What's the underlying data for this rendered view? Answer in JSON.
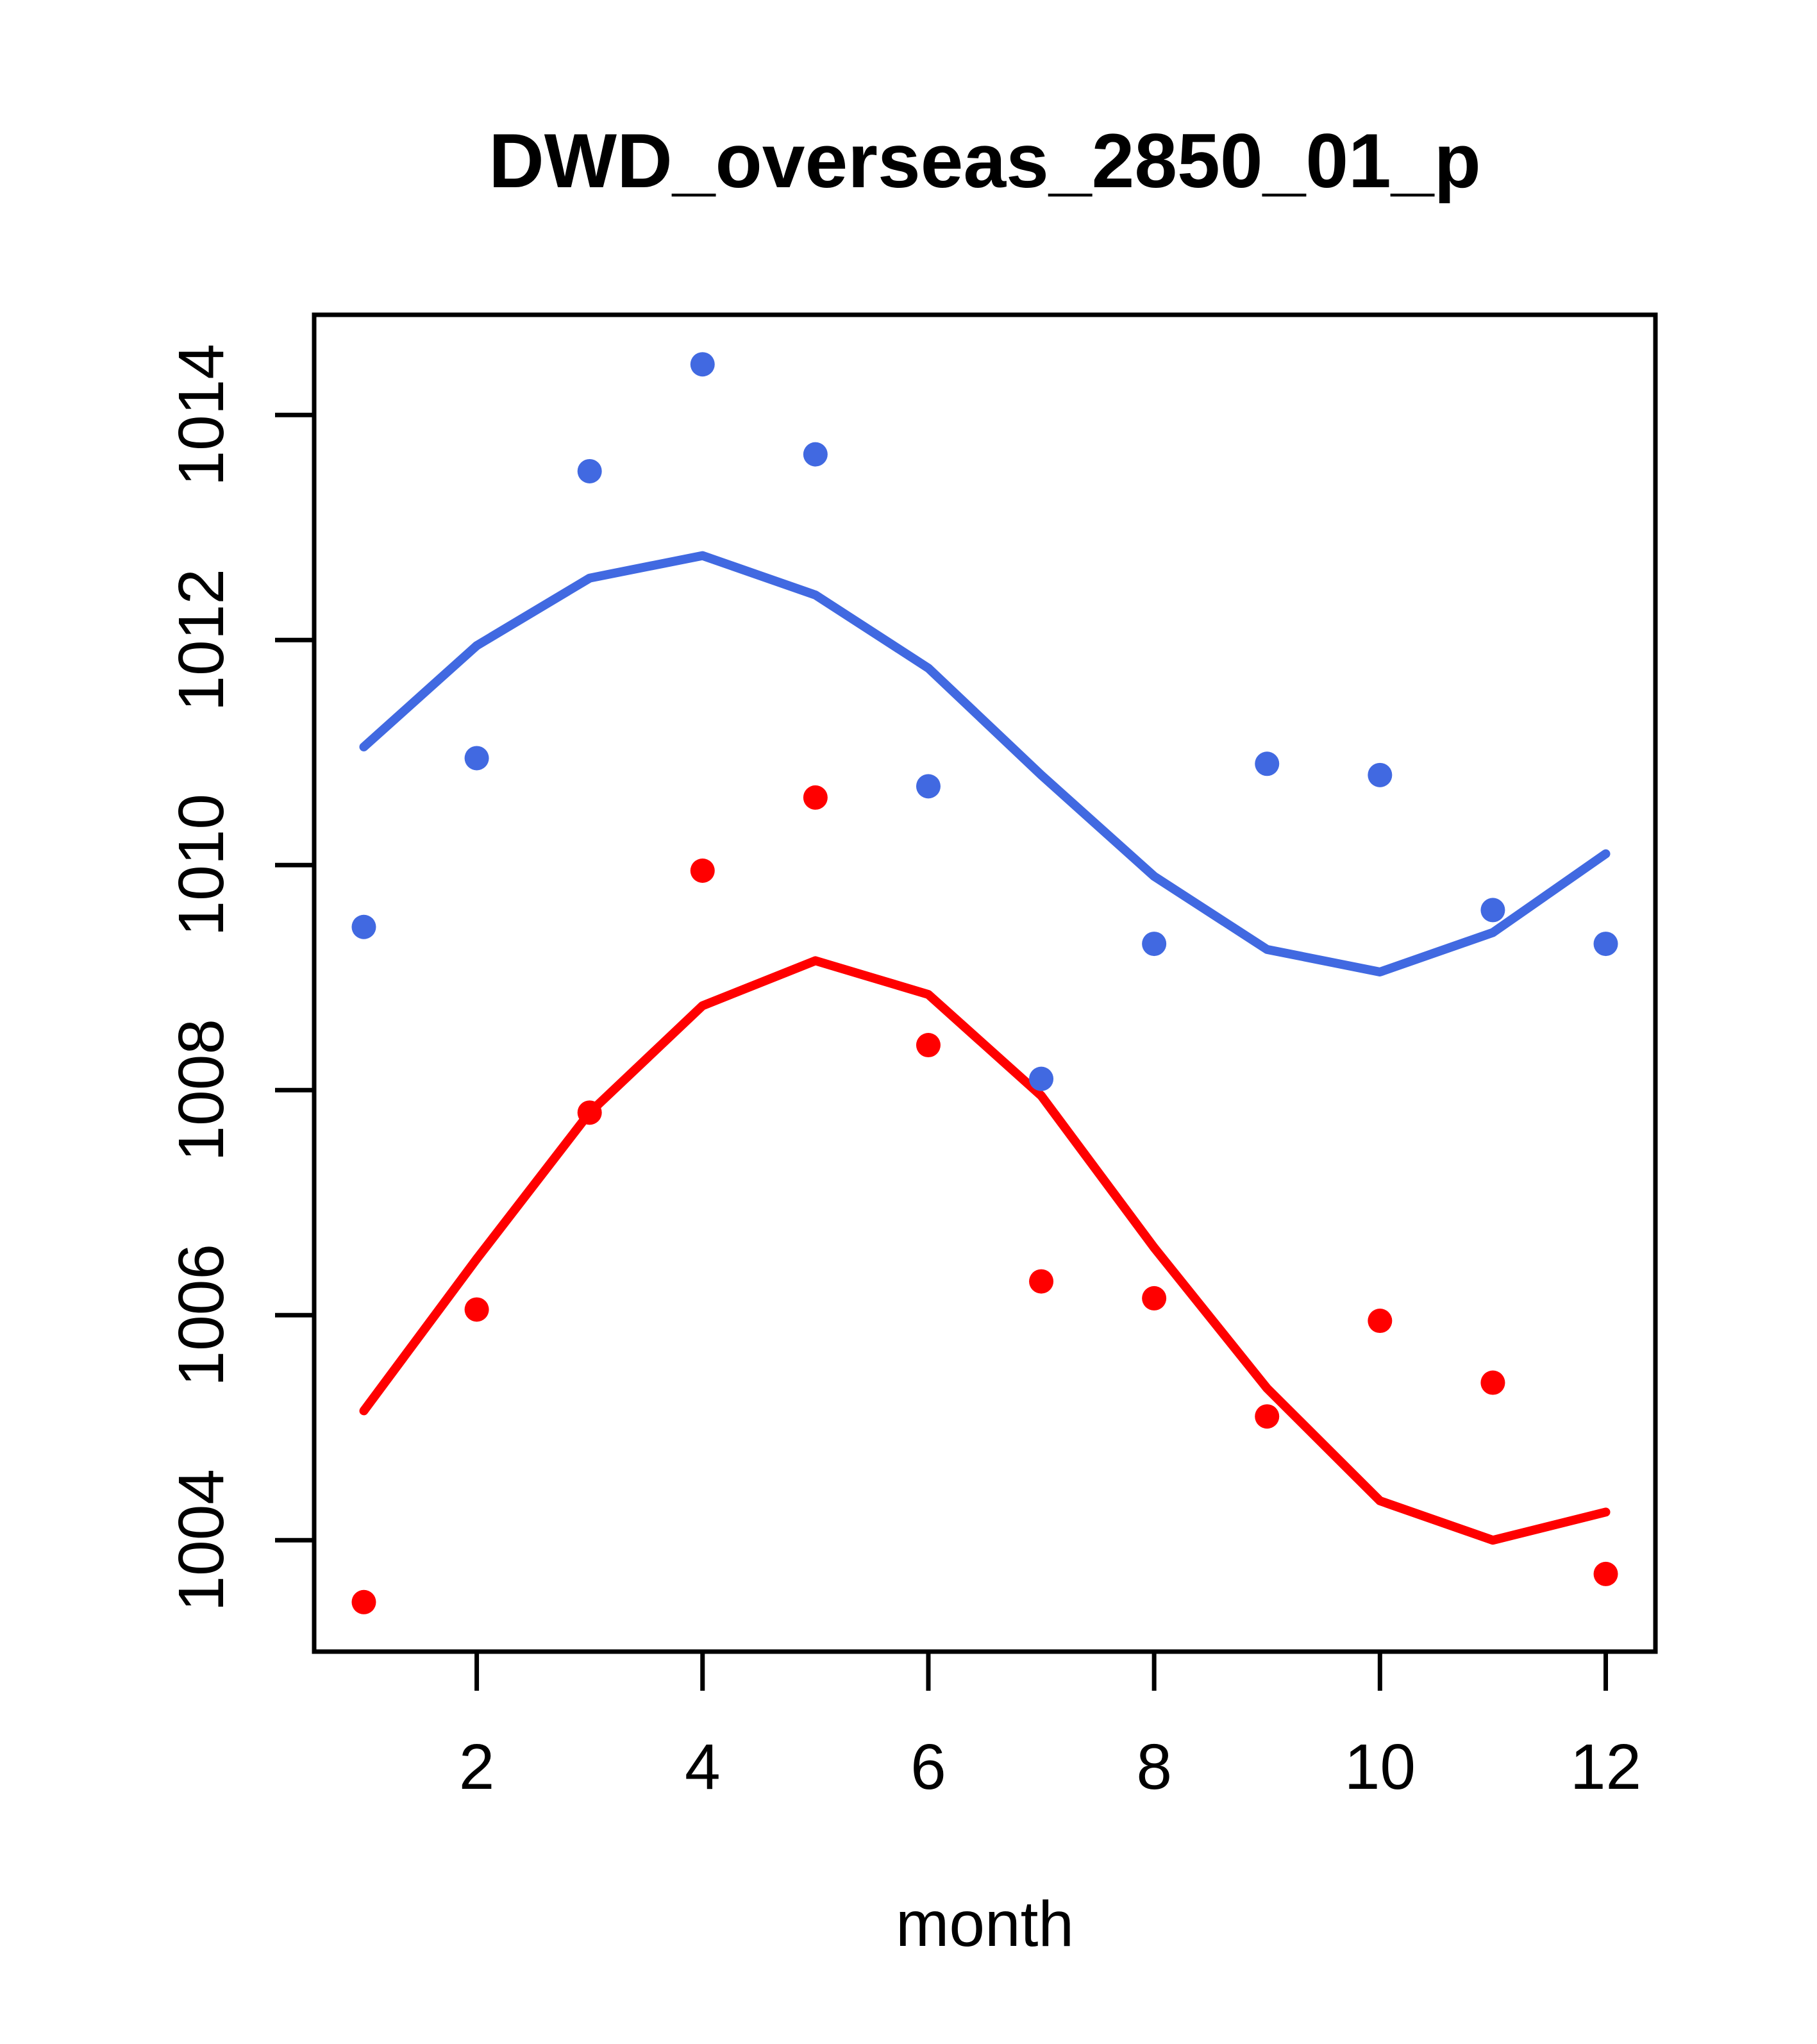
{
  "chart_data": {
    "type": "scatter",
    "title": "DWD_overseas_2850_01_p",
    "xlabel": "month",
    "ylabel": "",
    "x": [
      1,
      2,
      3,
      4,
      5,
      6,
      7,
      8,
      9,
      10,
      11,
      12
    ],
    "series": [
      {
        "name": "blue-observed-points",
        "kind": "points",
        "color": "#4169E1",
        "values": [
          1009.45,
          1010.95,
          1013.5,
          1014.45,
          1013.65,
          1010.7,
          1008.1,
          1009.3,
          1010.9,
          1010.8,
          1009.6,
          1009.3
        ]
      },
      {
        "name": "red-observed-points",
        "kind": "points",
        "color": "#FF0000",
        "values": [
          1003.45,
          1006.05,
          1007.8,
          1009.95,
          1010.6,
          1008.4,
          1006.3,
          1006.15,
          1005.1,
          1005.95,
          1005.4,
          1003.7
        ]
      },
      {
        "name": "blue-trend-line",
        "kind": "line",
        "color": "#4169E1",
        "values": [
          1011.05,
          1011.95,
          1012.55,
          1012.75,
          1012.4,
          1011.75,
          1010.8,
          1009.9,
          1009.25,
          1009.05,
          1009.4,
          1010.1
        ]
      },
      {
        "name": "red-trend-line",
        "kind": "line",
        "color": "#FF0000",
        "values": [
          1005.15,
          1006.5,
          1007.8,
          1008.75,
          1009.15,
          1008.85,
          1007.95,
          1006.6,
          1005.35,
          1004.35,
          1004.0,
          1004.25
        ]
      }
    ],
    "xlim": [
      0.56,
      12.44
    ],
    "ylim": [
      1003.01,
      1014.89
    ],
    "xticks": [
      2,
      4,
      6,
      8,
      10,
      12
    ],
    "yticks": [
      1004,
      1006,
      1008,
      1010,
      1012,
      1014
    ],
    "grid": false,
    "legend": null,
    "axis_color": "#000000",
    "background_color": "#FFFFFF"
  }
}
